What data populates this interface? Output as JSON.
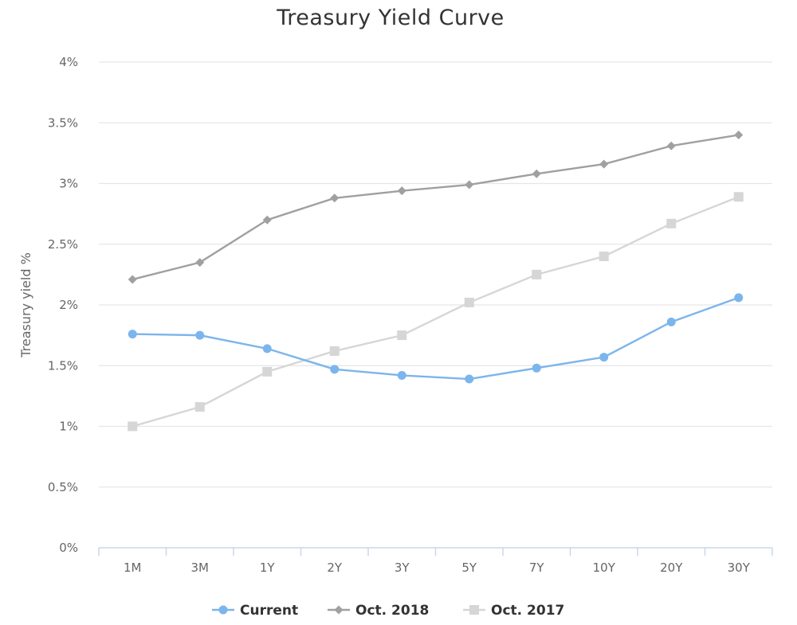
{
  "chart_data": {
    "type": "line",
    "title": "Treasury Yield Curve",
    "xlabel": "",
    "ylabel": "Treasury yield %",
    "categories": [
      "1M",
      "3M",
      "1Y",
      "2Y",
      "3Y",
      "5Y",
      "7Y",
      "10Y",
      "20Y",
      "30Y"
    ],
    "ylim": [
      0,
      4
    ],
    "yticks": [
      0,
      0.5,
      1,
      1.5,
      2,
      2.5,
      3,
      3.5,
      4
    ],
    "ytick_labels": [
      "0%",
      "0.5%",
      "1%",
      "1.5%",
      "2%",
      "2.5%",
      "3%",
      "3.5%",
      "4%"
    ],
    "grid": true,
    "legend_position": "bottom-center",
    "series": [
      {
        "name": "Current",
        "color": "#7cb5ec",
        "marker": "circle",
        "values": [
          1.76,
          1.75,
          1.64,
          1.47,
          1.42,
          1.39,
          1.48,
          1.57,
          1.86,
          2.06
        ]
      },
      {
        "name": "Oct. 2018",
        "color": "#a0a0a0",
        "marker": "diamond",
        "values": [
          2.21,
          2.35,
          2.7,
          2.88,
          2.94,
          2.99,
          3.08,
          3.16,
          3.31,
          3.4
        ]
      },
      {
        "name": "Oct. 2017",
        "color": "#d6d6d6",
        "marker": "square",
        "values": [
          1.0,
          1.16,
          1.45,
          1.62,
          1.75,
          2.02,
          2.25,
          2.4,
          2.67,
          2.89
        ]
      }
    ]
  }
}
